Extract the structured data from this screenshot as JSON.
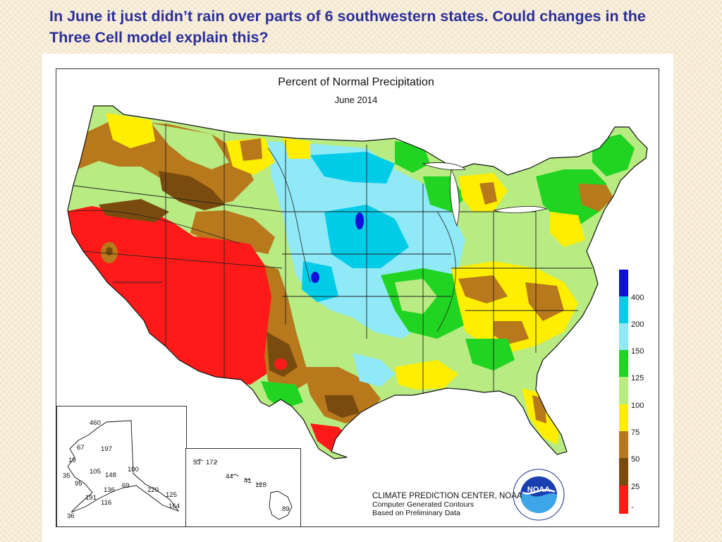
{
  "slide": {
    "title": "In June it just didn’t rain over parts of 6 southwestern states.  Could changes in the Three Cell model explain this?"
  },
  "map": {
    "title": "Percent of Normal Precipitation",
    "subtitle": "June 2014",
    "colors": {
      "red": "#ff1a1a",
      "dark_brown": "#7a4b0f",
      "brown": "#b8781c",
      "yellow": "#ffee00",
      "light_green": "#b8eb82",
      "green": "#21d421",
      "light_cyan": "#8fe9f7",
      "cyan": "#00cce8",
      "blue": "#1010d8"
    },
    "legend": {
      "labels": [
        "400",
        "200",
        "150",
        "125",
        "100",
        "75",
        "50",
        "25",
        "-"
      ]
    },
    "credit": {
      "org": "CLIMATE PREDICTION CENTER, NOAA",
      "line2": "Computer Generated Contours",
      "line3": "Based on Preliminary Data",
      "logo_text": "NOAA"
    },
    "alaska_stations": [
      "460",
      "67",
      "197",
      "19",
      "35",
      "105",
      "148",
      "100",
      "95",
      "136",
      "69",
      "220",
      "125",
      "191",
      "116",
      "164",
      "36"
    ],
    "hawaii_stations": [
      "53",
      "172",
      "44",
      "41",
      "128",
      "89"
    ]
  }
}
